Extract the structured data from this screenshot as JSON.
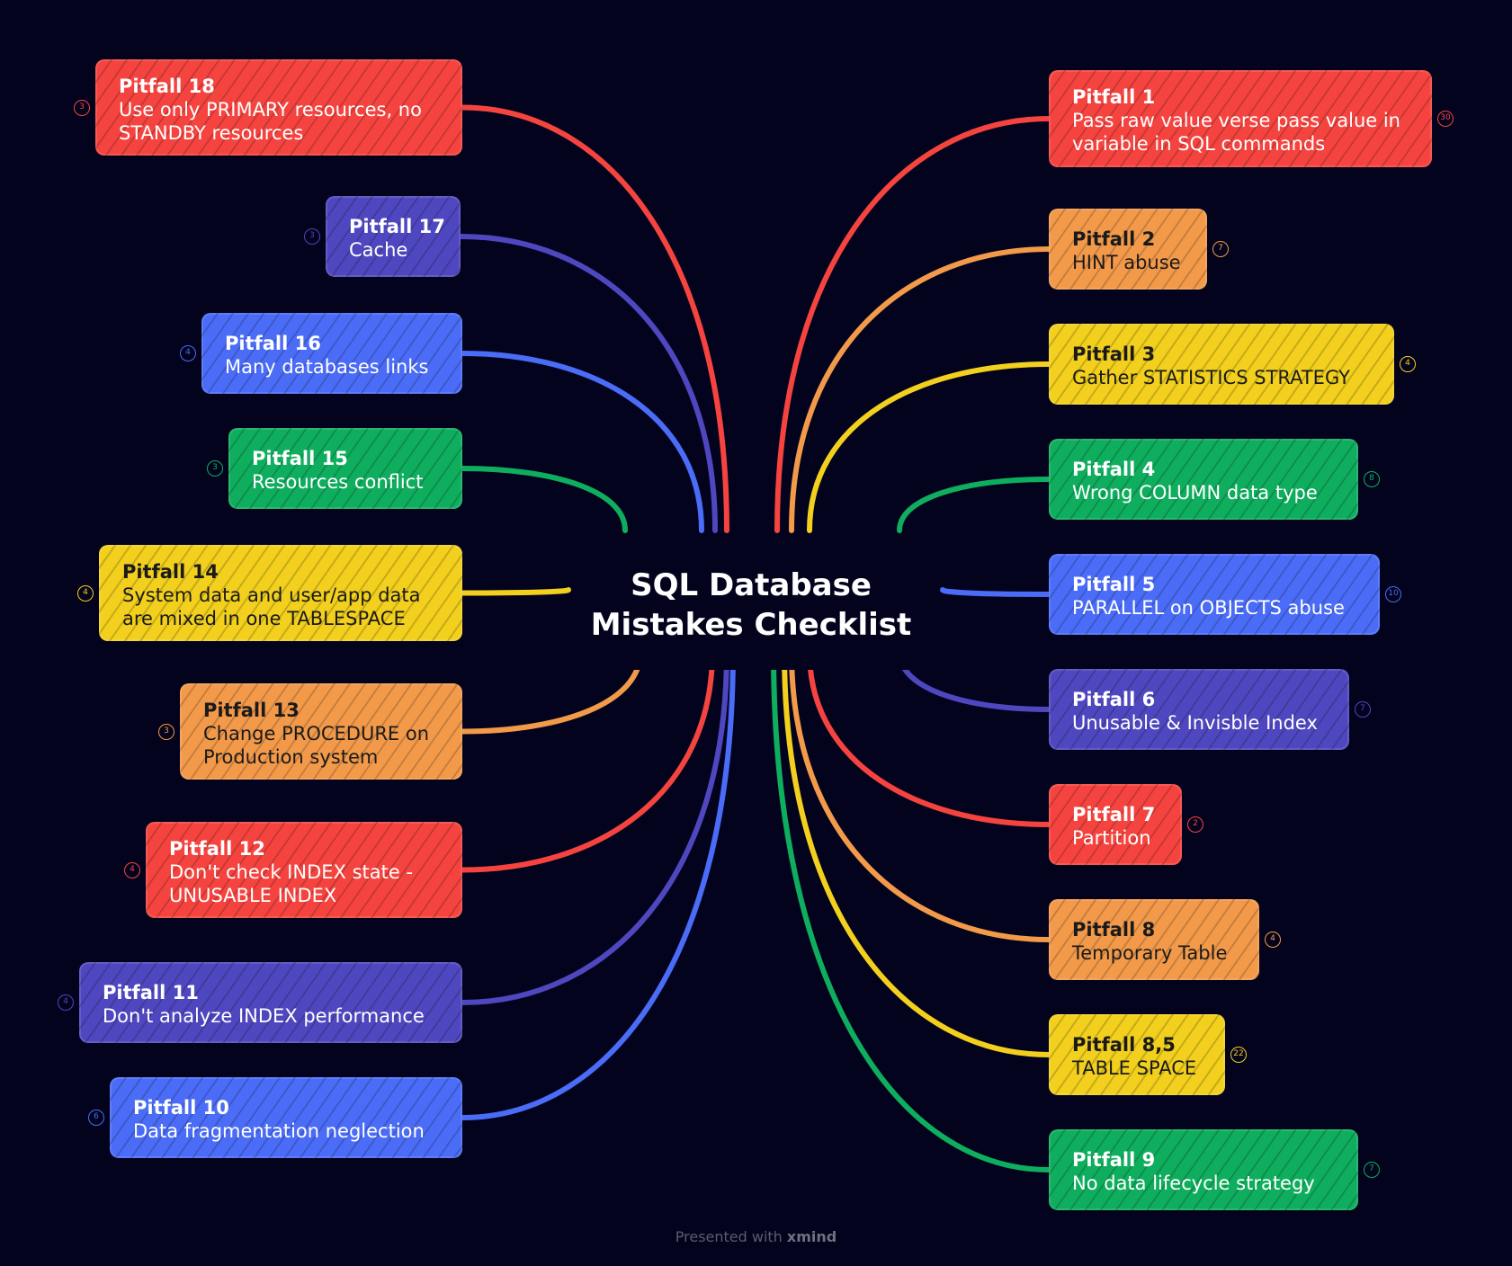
{
  "title_lines": [
    "SQL Database",
    "Mistakes Checklist"
  ],
  "footer": {
    "prefix": "Presented with",
    "brand": "xmind"
  },
  "colors": {
    "red": "#f5443f",
    "orange": "#f39a4a",
    "yellow": "#f2d01d",
    "green": "#0fae5e",
    "blue": "#4a6cf7",
    "purple": "#4f47bf"
  },
  "pitfalls": [
    {
      "side": "left",
      "color": "red",
      "line1": "Pitfall 18",
      "lines": [
        "Use only PRIMARY resources, no",
        "STANDBY resources"
      ],
      "count": "3"
    },
    {
      "side": "left",
      "color": "purple",
      "line1": "Pitfall 17",
      "lines": [
        "Cache"
      ],
      "count": "3"
    },
    {
      "side": "left",
      "color": "blue",
      "line1": "Pitfall 16",
      "lines": [
        "Many databases links"
      ],
      "count": "4"
    },
    {
      "side": "left",
      "color": "green",
      "line1": "Pitfall 15",
      "lines": [
        "Resources conflict"
      ],
      "count": "3"
    },
    {
      "side": "left",
      "color": "yellow",
      "line1": "Pitfall 14",
      "lines": [
        "System data and user/app data",
        "are mixed in one TABLESPACE"
      ],
      "count": "4"
    },
    {
      "side": "left",
      "color": "orange",
      "line1": "Pitfall 13",
      "lines": [
        "Change PROCEDURE on",
        "Production system"
      ],
      "count": "3"
    },
    {
      "side": "left",
      "color": "red",
      "line1": "Pitfall 12",
      "lines": [
        "Don't check INDEX state -",
        "UNUSABLE INDEX"
      ],
      "count": "4"
    },
    {
      "side": "left",
      "color": "purple",
      "line1": "Pitfall 11",
      "lines": [
        "Don't analyze INDEX performance"
      ],
      "count": "4"
    },
    {
      "side": "left",
      "color": "blue",
      "line1": "Pitfall 10",
      "lines": [
        "Data fragmentation neglection"
      ],
      "count": "6"
    },
    {
      "side": "right",
      "color": "red",
      "line1": "Pitfall 1",
      "lines": [
        "Pass raw value verse pass value in",
        "variable in SQL commands"
      ],
      "count": "30"
    },
    {
      "side": "right",
      "color": "orange",
      "line1": "Pitfall  2",
      "lines": [
        "HINT abuse"
      ],
      "count": "7"
    },
    {
      "side": "right",
      "color": "yellow",
      "line1": "Pitfall 3",
      "lines": [
        "Gather STATISTICS STRATEGY"
      ],
      "count": "4"
    },
    {
      "side": "right",
      "color": "green",
      "line1": "Pitfall 4",
      "lines": [
        "Wrong COLUMN data type"
      ],
      "count": "8"
    },
    {
      "side": "right",
      "color": "blue",
      "line1": "Pitfall 5",
      "lines": [
        "PARALLEL on OBJECTS abuse"
      ],
      "count": "10"
    },
    {
      "side": "right",
      "color": "purple",
      "line1": "Pitfall 6",
      "lines": [
        "Unusable & Invisble Index"
      ],
      "count": "7"
    },
    {
      "side": "right",
      "color": "red",
      "line1": "Pitfall 7",
      "lines": [
        "Partition"
      ],
      "count": "2"
    },
    {
      "side": "right",
      "color": "orange",
      "line1": "Pitfall 8",
      "lines": [
        "Temporary Table"
      ],
      "count": "4"
    },
    {
      "side": "right",
      "color": "yellow",
      "line1": "Pitfall 8,5",
      "lines": [
        "TABLE SPACE"
      ],
      "count": "22"
    },
    {
      "side": "right",
      "color": "green",
      "line1": "Pitfall 9",
      "lines": [
        "No data lifecycle strategy"
      ],
      "count": "7"
    }
  ]
}
